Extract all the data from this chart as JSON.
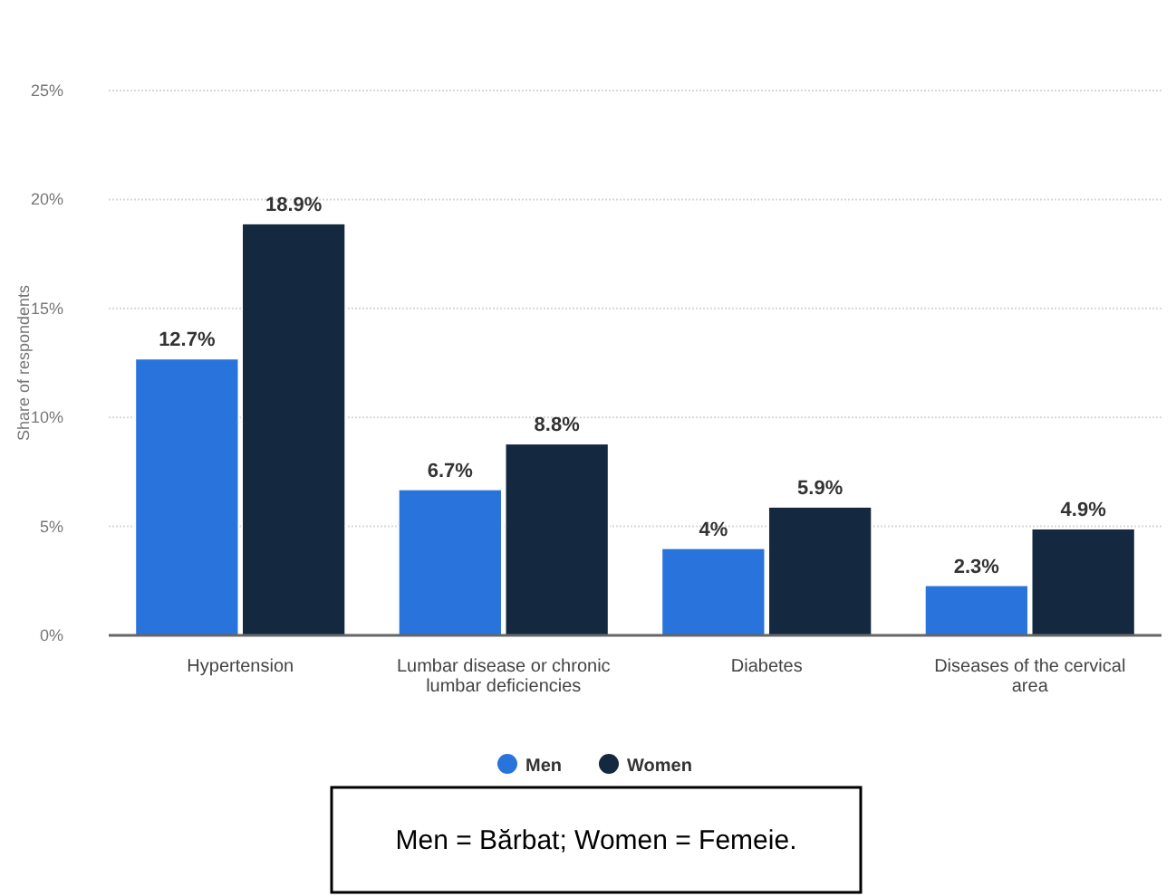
{
  "chart_data": {
    "type": "bar",
    "ylabel": "Share of respondents",
    "categories": [
      "Hypertension",
      "Lumbar disease or chronic lumbar deficiencies",
      "Diabetes",
      "Diseases of the cervical area"
    ],
    "series": [
      {
        "name": "Men",
        "color": "#2874dc",
        "values": [
          12.7,
          6.7,
          4,
          2.3
        ],
        "value_labels": [
          "12.7%",
          "6.7%",
          "4%",
          "2.3%"
        ]
      },
      {
        "name": "Women",
        "color": "#14283f",
        "values": [
          18.9,
          8.8,
          5.9,
          4.9
        ],
        "value_labels": [
          "18.9%",
          "8.8%",
          "5.9%",
          "4.9%"
        ]
      }
    ],
    "ylim": [
      0,
      25
    ],
    "yticks": [
      {
        "value": 0,
        "label": "0%"
      },
      {
        "value": 5,
        "label": "5%"
      },
      {
        "value": 10,
        "label": "10%"
      },
      {
        "value": 15,
        "label": "15%"
      },
      {
        "value": 20,
        "label": "20%"
      },
      {
        "value": 25,
        "label": "25%"
      }
    ],
    "grid": "y",
    "legend": "bottom",
    "annotations": [
      "Men = Bărbat; Women = Femeie."
    ]
  }
}
